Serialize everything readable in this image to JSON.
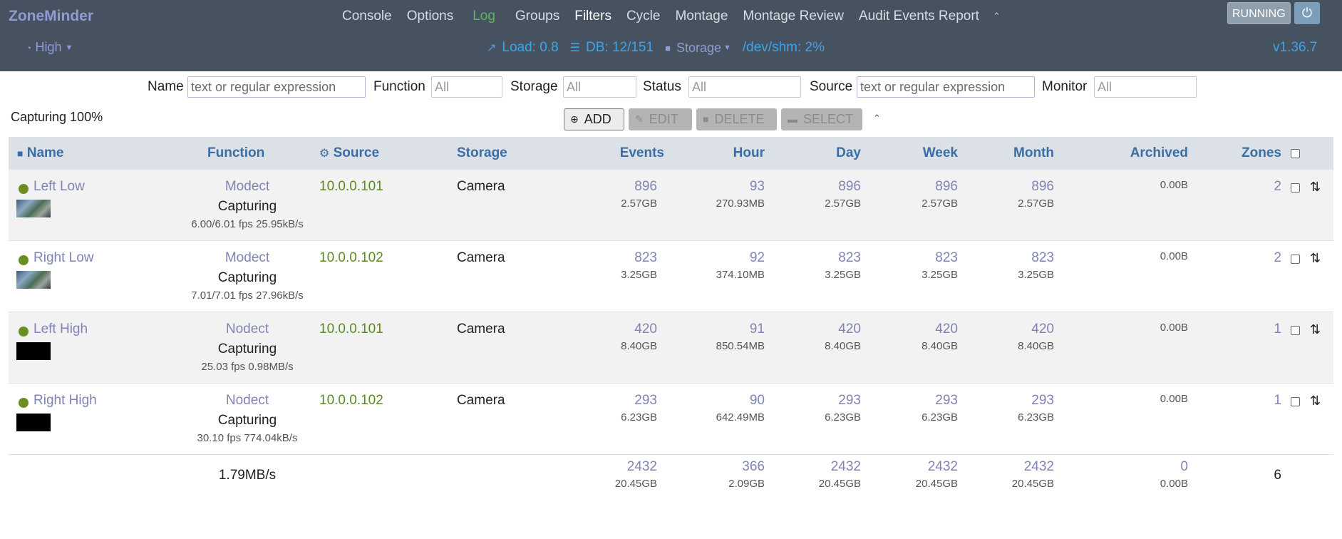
{
  "header": {
    "brand": "ZoneMinder",
    "menu": [
      "Console",
      "Options",
      "Log",
      "Groups",
      "Filters",
      "Cycle",
      "Montage",
      "Montage Review",
      "Audit Events Report"
    ],
    "active_menu": "Filters",
    "status_button": "RUNNING",
    "bandwidth": "High",
    "load": "Load: 0.8",
    "db": "DB: 12/151",
    "storage": "Storage",
    "shm": "/dev/shm: 2%",
    "version": "v1.36.7",
    "colors": {
      "navbar": "#465260",
      "accent": "#3aa6ea",
      "log": "#5cb85c"
    }
  },
  "filters": {
    "name_label": "Name",
    "name_placeholder": "text or regular expression",
    "function_label": "Function",
    "function_value": "All",
    "storage_label": "Storage",
    "storage_value": "All",
    "status_label": "Status",
    "status_value": "All",
    "source_label": "Source",
    "source_placeholder": "text or regular expression",
    "monitor_label": "Monitor",
    "monitor_value": "All"
  },
  "toolbar": {
    "capturing": "Capturing 100%",
    "add": "ADD",
    "edit": "EDIT",
    "delete": "DELETE",
    "select": "SELECT"
  },
  "table": {
    "headers": {
      "name": "Name",
      "function": "Function",
      "source": "Source",
      "storage": "Storage",
      "events": "Events",
      "hour": "Hour",
      "day": "Day",
      "week": "Week",
      "month": "Month",
      "archived": "Archived",
      "zones": "Zones"
    },
    "rows": [
      {
        "name": "Left Low",
        "thumb": "camera",
        "function": "Modect",
        "status": "Capturing",
        "fps": "6.00/6.01 fps 25.95kB/s",
        "source": "10.0.0.101",
        "storage": "Camera",
        "events": "896",
        "events_size": "2.57GB",
        "hour": "93",
        "hour_size": "270.93MB",
        "day": "896",
        "day_size": "2.57GB",
        "week": "896",
        "week_size": "2.57GB",
        "month": "896",
        "month_size": "2.57GB",
        "archived": "",
        "archived_size": "0.00B",
        "zones": "2"
      },
      {
        "name": "Right Low",
        "thumb": "camera",
        "function": "Modect",
        "status": "Capturing",
        "fps": "7.01/7.01 fps 27.96kB/s",
        "source": "10.0.0.102",
        "storage": "Camera",
        "events": "823",
        "events_size": "3.25GB",
        "hour": "92",
        "hour_size": "374.10MB",
        "day": "823",
        "day_size": "3.25GB",
        "week": "823",
        "week_size": "3.25GB",
        "month": "823",
        "month_size": "3.25GB",
        "archived": "",
        "archived_size": "0.00B",
        "zones": "2"
      },
      {
        "name": "Left High",
        "thumb": "black",
        "function": "Nodect",
        "status": "Capturing",
        "fps": "25.03 fps 0.98MB/s",
        "source": "10.0.0.101",
        "storage": "Camera",
        "events": "420",
        "events_size": "8.40GB",
        "hour": "91",
        "hour_size": "850.54MB",
        "day": "420",
        "day_size": "8.40GB",
        "week": "420",
        "week_size": "8.40GB",
        "month": "420",
        "month_size": "8.40GB",
        "archived": "",
        "archived_size": "0.00B",
        "zones": "1"
      },
      {
        "name": "Right High",
        "thumb": "black",
        "function": "Nodect",
        "status": "Capturing",
        "fps": "30.10 fps 774.04kB/s",
        "source": "10.0.0.102",
        "storage": "Camera",
        "events": "293",
        "events_size": "6.23GB",
        "hour": "90",
        "hour_size": "642.49MB",
        "day": "293",
        "day_size": "6.23GB",
        "week": "293",
        "week_size": "6.23GB",
        "month": "293",
        "month_size": "6.23GB",
        "archived": "",
        "archived_size": "0.00B",
        "zones": "1"
      }
    ],
    "footer": {
      "rate": "1.79MB/s",
      "events": "2432",
      "events_size": "20.45GB",
      "hour": "366",
      "hour_size": "2.09GB",
      "day": "2432",
      "day_size": "20.45GB",
      "week": "2432",
      "week_size": "20.45GB",
      "month": "2432",
      "month_size": "20.45GB",
      "archived": "0",
      "archived_size": "0.00B",
      "zones": "6"
    }
  }
}
